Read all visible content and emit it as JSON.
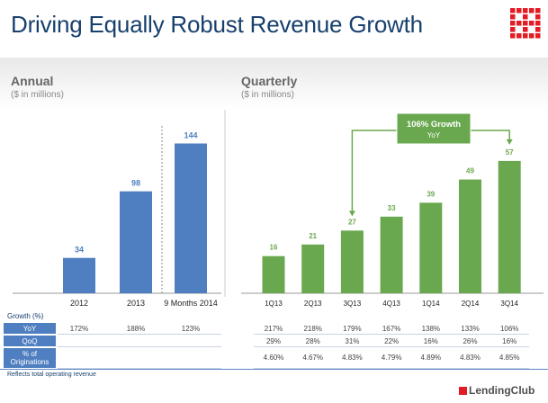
{
  "title": "Driving Equally Robust Revenue Growth",
  "colors": {
    "annual_bar": "#4f7fc0",
    "quarterly_bar": "#6aa84f",
    "title": "#17406d",
    "logo": "#e31b23"
  },
  "annual": {
    "title": "Annual",
    "subtitle": "($ in millions)"
  },
  "quarterly": {
    "title": "Quarterly",
    "subtitle": "($ in millions)",
    "callout": {
      "title": "106% Growth",
      "subtitle": "YoY"
    }
  },
  "chart_data": [
    {
      "type": "bar",
      "title": "Annual",
      "categories": [
        "2012",
        "2013",
        "9 Months 2014"
      ],
      "values": [
        34,
        98,
        144
      ],
      "ylim": [
        0,
        160
      ],
      "grid": false,
      "data_labels": true
    },
    {
      "type": "bar",
      "title": "Quarterly",
      "categories": [
        "1Q13",
        "2Q13",
        "3Q13",
        "4Q13",
        "1Q14",
        "2Q14",
        "3Q14"
      ],
      "values": [
        16,
        21,
        27,
        33,
        39,
        49,
        57
      ],
      "ylim": [
        0,
        62
      ],
      "grid": false,
      "data_labels": true,
      "annotation": {
        "text": "106% Growth YoY",
        "from": "3Q13",
        "to": "3Q14"
      }
    }
  ],
  "table": {
    "heading": "Growth (%)",
    "rows": [
      {
        "label": "YoY",
        "annual": [
          "172%",
          "188%",
          "123%"
        ],
        "quarterly": [
          "217%",
          "218%",
          "179%",
          "167%",
          "138%",
          "133%",
          "106%"
        ]
      },
      {
        "label": "QoQ",
        "annual": [
          "",
          "",
          ""
        ],
        "quarterly": [
          "29%",
          "28%",
          "31%",
          "22%",
          "16%",
          "26%",
          "16%"
        ]
      },
      {
        "label": "% of Originations",
        "annual": [
          "",
          "",
          ""
        ],
        "quarterly": [
          "4.60%",
          "4.67%",
          "4.83%",
          "4.79%",
          "4.89%",
          "4.83%",
          "4.85%"
        ]
      }
    ]
  },
  "footnote": "Reflects total operating revenue",
  "brand": "LendingClub"
}
